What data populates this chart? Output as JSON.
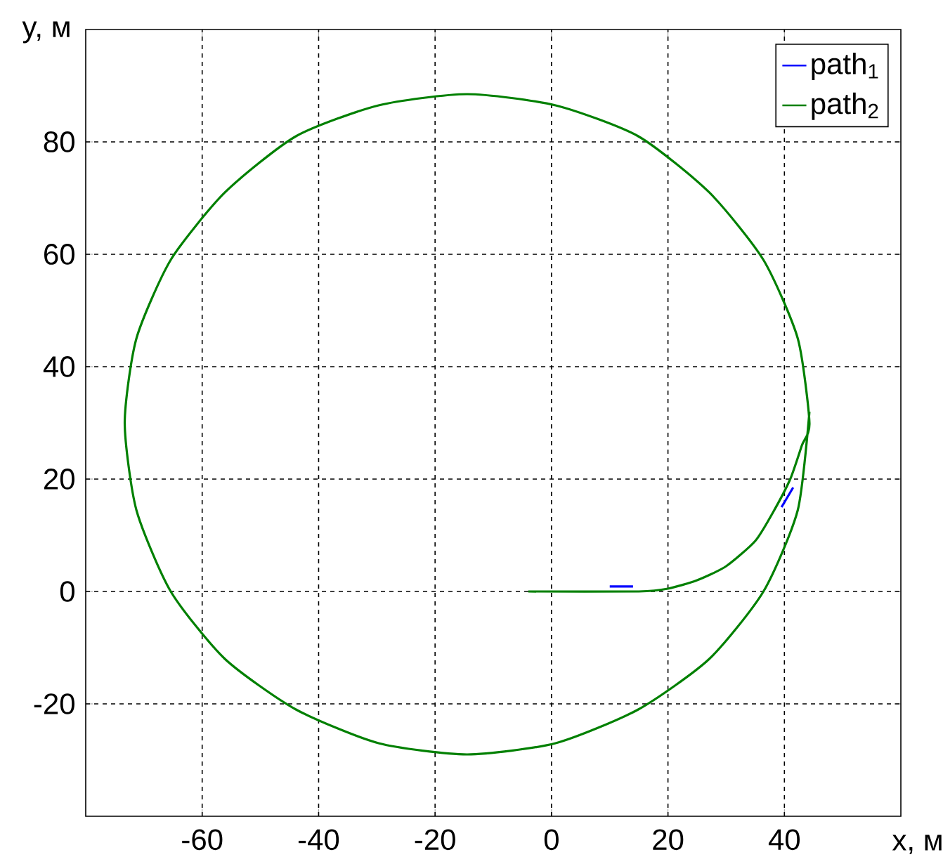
{
  "chart_data": {
    "type": "line",
    "xlabel": "x, м",
    "ylabel": "y, м",
    "xlim": [
      -80,
      60
    ],
    "ylim": [
      -40,
      100
    ],
    "xticks": [
      -60,
      -40,
      -20,
      0,
      20,
      40
    ],
    "yticks": [
      -20,
      0,
      20,
      40,
      60,
      80
    ],
    "grid": true,
    "legend": "top right",
    "line_style": "solid",
    "marker": "none",
    "series": [
      {
        "name": "path$_{1}$",
        "color": "#0000ff",
        "x": [
          10,
          14,
          16,
          39.5,
          41.5
        ],
        "values": [
          0.9,
          0.9,
          null,
          15,
          18.5
        ]
      },
      {
        "name": "path$_{2}$",
        "color": "#008000",
        "x": [
          -4,
          15,
          20,
          25,
          30,
          35,
          38,
          41,
          43,
          44.3,
          42.3,
          36.4,
          27.1,
          14.9,
          0.7,
          -14.5,
          -29.7,
          -43.9,
          -56.1,
          -65.4,
          -71.3,
          -73.3,
          -71.3,
          -65.4,
          -56.1,
          -43.9,
          -29.7,
          -14.5,
          0.7,
          14.9,
          27.1,
          36.4,
          42.3,
          44.3
        ],
        "values": [
          0,
          0,
          0.5,
          2,
          4.5,
          9,
          14,
          20,
          26,
          30,
          45,
          59,
          71,
          81,
          86.5,
          88.5,
          86.5,
          81,
          71,
          59,
          45,
          30,
          14.5,
          0,
          -12,
          -21,
          -27,
          -29,
          -27,
          -21,
          -12,
          0,
          14.5,
          32
        ]
      }
    ]
  }
}
